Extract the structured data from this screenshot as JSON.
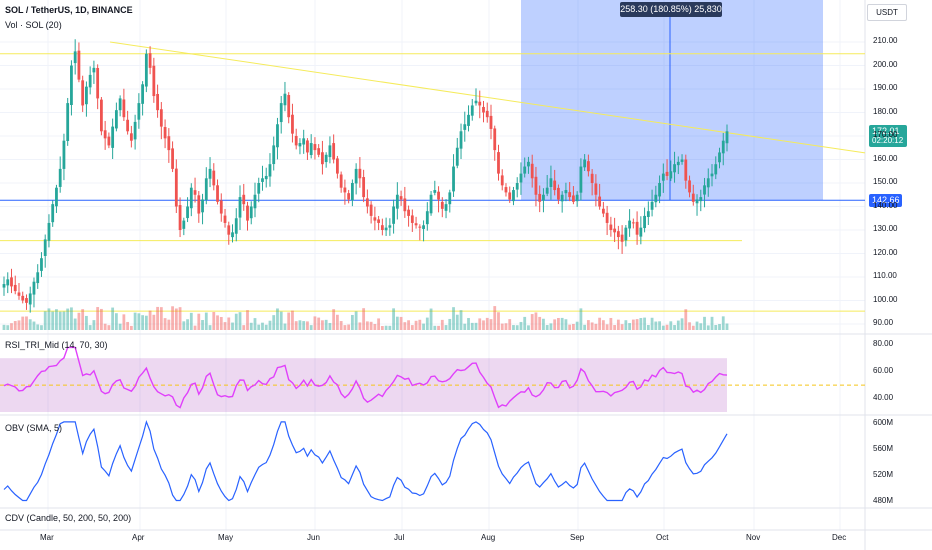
{
  "header": {
    "title": "SOL / TetherUS, 1D, BINANCE",
    "volume_label": "Vol · SOL (20)",
    "currency": "USDT"
  },
  "measure": {
    "label": "258.30 (180.85%) 25,830"
  },
  "price_tag": {
    "value": "172.01",
    "countdown": "02:20:12",
    "color": "#26a69a"
  },
  "level_tag": {
    "value": "142.66",
    "color": "#2962ff"
  },
  "panels": {
    "rsi_title": "RSI_TRI_Mid (14, 70, 30)",
    "obv_title": "OBV (SMA, 5)",
    "cdv_title": "CDV (Candle, 50, 200, 50, 200)"
  },
  "chart_data": {
    "type": "candlestick",
    "price_axis": {
      "ticks": [
        "210.00",
        "200.00",
        "190.00",
        "180.00",
        "170.00",
        "160.00",
        "150.00",
        "140.00",
        "130.00",
        "120.00",
        "110.00",
        "100.00",
        "90.00"
      ],
      "range": [
        90,
        210
      ]
    },
    "rsi_axis": {
      "ticks": [
        "80.00",
        "60.00",
        "40.00"
      ],
      "range": [
        30,
        85
      ]
    },
    "obv_axis": {
      "ticks": [
        "600M",
        "560M",
        "520M",
        "480M"
      ],
      "range": [
        480,
        600
      ]
    },
    "months": [
      "Mar",
      "Apr",
      "May",
      "Jun",
      "Jul",
      "Aug",
      "Sep",
      "Oct",
      "Nov",
      "Dec"
    ],
    "colors": {
      "up": "#26a69a",
      "down": "#ef5350",
      "rsi": "#e040fb",
      "obv": "#2962ff",
      "trend": "#f5eb5b"
    },
    "horizontal_levels": [
      205,
      125.5,
      95.5,
      142.66
    ],
    "trendline": {
      "from": [
        "Mar 20",
        210
      ],
      "to": [
        "Dec",
        163
      ]
    },
    "rsi_guides": [
      70,
      50,
      30
    ],
    "close_series": [
      107,
      109,
      106,
      104,
      102,
      100,
      99,
      103,
      108,
      112,
      118,
      126,
      133,
      141,
      148,
      156,
      168,
      184,
      200,
      206,
      194,
      183,
      191,
      196,
      199,
      186,
      172,
      169,
      166,
      174,
      181,
      186,
      178,
      172,
      168,
      176,
      184,
      192,
      205,
      199,
      187,
      181,
      174,
      169,
      164,
      156,
      140,
      130,
      134,
      140,
      148,
      145,
      137,
      143,
      152,
      156,
      149,
      142,
      137,
      133,
      128,
      129,
      135,
      144,
      141,
      134,
      140,
      145,
      150,
      152,
      153,
      158,
      166,
      175,
      184,
      188,
      178,
      171,
      166,
      167,
      169,
      163,
      167,
      164,
      162,
      158,
      162,
      166,
      160,
      154,
      148,
      146,
      143,
      150,
      156,
      152,
      144,
      140,
      136,
      134,
      133,
      130,
      131,
      132,
      140,
      145,
      143,
      138,
      136,
      133,
      132,
      131,
      132,
      138,
      145,
      147,
      143,
      139,
      141,
      146,
      157,
      165,
      172,
      175,
      179,
      183,
      185,
      183,
      180,
      178,
      173,
      164,
      154,
      149,
      146,
      143,
      147,
      150,
      154,
      157,
      159,
      152,
      145,
      142,
      145,
      148,
      152,
      147,
      143,
      145,
      147,
      144,
      142,
      145,
      157,
      160,
      155,
      150,
      145,
      140,
      137,
      133,
      130,
      129,
      127,
      125,
      131,
      134,
      133,
      128,
      131,
      136,
      138,
      142,
      145,
      150,
      154,
      153,
      155,
      158,
      159,
      160,
      151,
      146,
      142,
      143,
      144,
      149,
      152,
      154,
      158,
      163,
      168,
      172
    ]
  }
}
